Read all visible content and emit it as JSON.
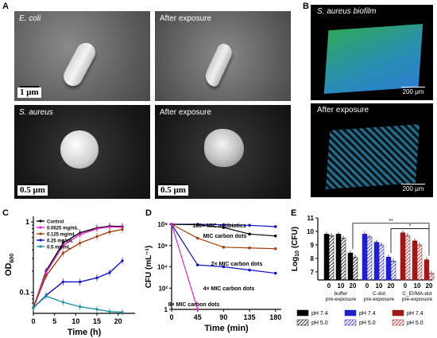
{
  "panels": {
    "A": {
      "letter": "A",
      "images": [
        {
          "label": "E. coli",
          "scale": "1 μm"
        },
        {
          "label": "After exposure",
          "scale": ""
        },
        {
          "label": "S. aureus",
          "scale": "0.5 μm"
        },
        {
          "label": "After exposure",
          "scale": "0.5 μm"
        }
      ]
    },
    "B": {
      "letter": "B",
      "images": [
        {
          "label": "S. aureus biofilm",
          "scale": "200 μm"
        },
        {
          "label": "After exposure",
          "scale": "200 μm"
        }
      ]
    },
    "C": {
      "letter": "C"
    },
    "D": {
      "letter": "D"
    },
    "E": {
      "letter": "E"
    }
  },
  "chart_data": [
    {
      "id": "C",
      "type": "line",
      "xlabel": "Time (h)",
      "ylabel": "OD600",
      "x_ticks": [
        0,
        5,
        10,
        15,
        20
      ],
      "y_ticks": [
        "0.1",
        "1"
      ],
      "xlim": [
        0,
        24
      ],
      "ylim": [
        0.05,
        1.2
      ],
      "log_y": true,
      "legend_position": "top-left",
      "series": [
        {
          "name": "Control",
          "color": "#000000",
          "x": [
            0,
            3,
            7,
            11,
            15,
            18,
            21
          ],
          "y": [
            0.06,
            0.2,
            0.5,
            0.7,
            0.82,
            0.87,
            0.86
          ]
        },
        {
          "name": "0.0625 mg/mL",
          "color": "#e020d0",
          "x": [
            0,
            3,
            7,
            11,
            15,
            18,
            21
          ],
          "y": [
            0.06,
            0.19,
            0.46,
            0.66,
            0.8,
            0.85,
            0.84
          ]
        },
        {
          "name": "0.125 mg/mL",
          "color": "#a04010",
          "x": [
            0,
            3,
            7,
            11,
            15,
            18,
            21
          ],
          "y": [
            0.06,
            0.17,
            0.36,
            0.5,
            0.62,
            0.72,
            0.78
          ]
        },
        {
          "name": "0.25 mg/mL",
          "color": "#1010c0",
          "x": [
            0,
            3,
            7,
            11,
            15,
            18,
            21
          ],
          "y": [
            0.06,
            0.09,
            0.14,
            0.14,
            0.16,
            0.19,
            0.28
          ]
        },
        {
          "name": "0.5 mg/mL",
          "color": "#2090a0",
          "x": [
            0,
            3,
            7,
            11,
            15,
            18,
            21
          ],
          "y": [
            0.06,
            0.088,
            0.072,
            0.062,
            0.057,
            0.053,
            0.052
          ]
        }
      ]
    },
    {
      "id": "D",
      "type": "line",
      "xlabel": "Time (min)",
      "ylabel": "CFU (mL⁻¹)",
      "x_ticks": [
        0,
        45,
        90,
        135,
        180
      ],
      "y_ticks": [
        "1",
        "10²",
        "10⁴",
        "10⁶",
        "10⁸"
      ],
      "xlim": [
        0,
        190
      ],
      "ylim": [
        1,
        100000000
      ],
      "log_y": true,
      "series": [
        {
          "name": "100× MIC antibiotics",
          "color": "#1010c0",
          "x": [
            0,
            45,
            90,
            135,
            180
          ],
          "y": [
            100000000,
            100000000,
            90000000,
            80000000,
            60000000
          ]
        },
        {
          "name": "MIC carbon dots",
          "color": "#000000",
          "x": [
            0,
            45,
            90,
            135,
            180
          ],
          "y": [
            100000000,
            90000000,
            50000000,
            12000000,
            8000000
          ]
        },
        {
          "name": "2× MIC carbon dots",
          "color": "#a04010",
          "x": [
            0,
            45,
            90,
            135,
            180
          ],
          "y": [
            100000000,
            5000000,
            700000,
            600000,
            500000
          ]
        },
        {
          "name": "4× MIC carbon dots",
          "color": "#1010c0",
          "x": [
            0,
            45,
            90,
            135,
            180
          ],
          "y": [
            100000000,
            15000,
            10000,
            5000,
            2500
          ]
        },
        {
          "name": "8× MIC carbon dots",
          "color": "#e020d0",
          "x": [
            0,
            45
          ],
          "y": [
            100000000,
            1
          ]
        }
      ]
    },
    {
      "id": "E",
      "type": "bar",
      "ylabel": "Log10 (CFU)",
      "y_ticks": [
        7,
        8,
        9,
        10,
        11
      ],
      "ylim": [
        6.4,
        11
      ],
      "group_ticks": [
        "0",
        "10",
        "20"
      ],
      "groups": [
        {
          "label": "buffer pre-exposure",
          "color": "#000000",
          "values_pH74": [
            9.8,
            9.8,
            8.4
          ],
          "values_pH50": [
            9.7,
            9.5,
            8.1
          ]
        },
        {
          "label": "C-dot pre-exposure",
          "color": "#2020c8",
          "values_pH74": [
            9.8,
            9.2,
            8.1
          ],
          "values_pH50": [
            9.6,
            9.0,
            7.8
          ]
        },
        {
          "label": "C_EI/MA-dot pre-exposure",
          "color": "#a01818",
          "values_pH74": [
            9.9,
            9.3,
            7.9
          ],
          "values_pH50": [
            9.7,
            9.0,
            6.9
          ]
        }
      ],
      "significance": [
        "**",
        "*"
      ],
      "legend": [
        {
          "label": "pH 7.4",
          "group": 0,
          "pattern": "solid"
        },
        {
          "label": "pH 5.0",
          "group": 0,
          "pattern": "hatch"
        },
        {
          "label": "pH 7.4",
          "group": 1,
          "pattern": "solid"
        },
        {
          "label": "pH 5.0",
          "group": 1,
          "pattern": "hatch"
        },
        {
          "label": "pH 7.4",
          "group": 2,
          "pattern": "solid"
        },
        {
          "label": "pH 5.0",
          "group": 2,
          "pattern": "hatch"
        }
      ]
    }
  ]
}
